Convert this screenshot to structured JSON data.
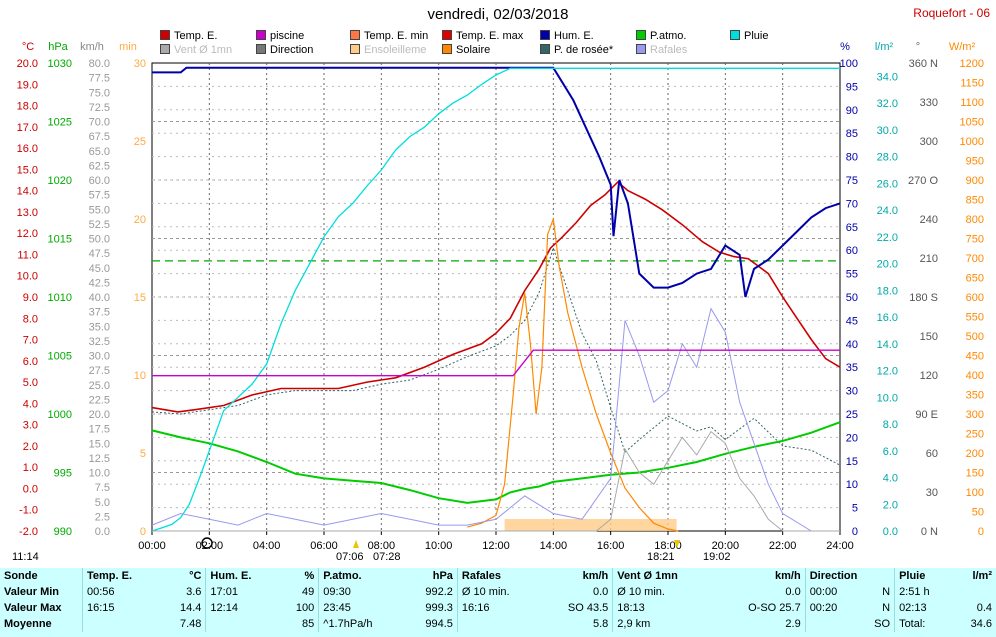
{
  "header": {
    "title": "vendredi, 02/03/2018",
    "station": "Roquefort - 06"
  },
  "legend": [
    {
      "label": "Temp. E.",
      "color": "#cc0000",
      "faded": false
    },
    {
      "label": "Vent Ø 1mn",
      "color": "#aaaaaa",
      "faded": true
    },
    {
      "label": "piscine",
      "color": "#cc00cc",
      "faded": false
    },
    {
      "label": "Direction",
      "color": "#777777",
      "faded": false
    },
    {
      "label": "Temp. E. min",
      "color": "#ff7744",
      "faded": false
    },
    {
      "label": "Ensoleilleme",
      "color": "#ffcc88",
      "faded": true
    },
    {
      "label": "Temp. E. max",
      "color": "#dd0000",
      "faded": false
    },
    {
      "label": "Solaire",
      "color": "#ff8800",
      "faded": false
    },
    {
      "label": "Hum. E.",
      "color": "#0000aa",
      "faded": false
    },
    {
      "label": "P. de rosée*",
      "color": "#336666",
      "faded": false
    },
    {
      "label": "P.atmo.",
      "color": "#00cc00",
      "faded": false
    },
    {
      "label": "Rafales",
      "color": "#9999ee",
      "faded": true
    },
    {
      "label": "Pluie",
      "color": "#00dddd",
      "faded": false
    }
  ],
  "axis_units": {
    "temp": "°C",
    "pressure": "hPa",
    "wind": "km/h",
    "solar_left": "min",
    "humidity": "%",
    "rain": "l/m²",
    "direction": "°",
    "solar": "W/m²"
  },
  "sun": {
    "sunrise": "07:06",
    "sunset": "18:21",
    "moon_events": [
      "07:28",
      "19:02"
    ],
    "time_marker": "11:14"
  },
  "chart_data": {
    "type": "line",
    "x_range": [
      "00:00",
      "24:00"
    ],
    "x_ticks": [
      "00:00",
      "02:00",
      "04:00",
      "06:00",
      "08:00",
      "10:00",
      "12:00",
      "14:00",
      "16:00",
      "18:00",
      "20:00",
      "22:00",
      "24:00"
    ],
    "temp_axis": {
      "range": [
        -2.0,
        20.0
      ],
      "ticks": [
        "-2.0",
        "-1.0",
        "0.0",
        "1.0",
        "2.0",
        "3.0",
        "4.0",
        "5.0",
        "6.0",
        "7.0",
        "8.0",
        "9.0",
        "10.0",
        "11.0",
        "12.0",
        "13.0",
        "14.0",
        "15.0",
        "16.0",
        "17.0",
        "18.0",
        "19.0",
        "20.0"
      ]
    },
    "pressure_axis": {
      "range": [
        990,
        1030
      ],
      "ticks": [
        "990",
        "995",
        "1000",
        "1005",
        "1010",
        "1015",
        "1020",
        "1025",
        "1030"
      ]
    },
    "wind_axis": {
      "range": [
        0.0,
        80.0
      ],
      "ticks": [
        "0.0",
        "2.5",
        "5.0",
        "7.5",
        "10.0",
        "12.5",
        "15.0",
        "17.5",
        "20.0",
        "22.5",
        "25.0",
        "27.5",
        "30.0",
        "32.5",
        "35.0",
        "37.5",
        "40.0",
        "42.5",
        "45.0",
        "47.5",
        "50.0",
        "52.5",
        "55.0",
        "57.5",
        "60.0",
        "62.5",
        "65.0",
        "67.5",
        "70.0",
        "72.5",
        "75.0",
        "77.5",
        "80.0"
      ]
    },
    "sunshine_axis": {
      "range": [
        0,
        30
      ],
      "ticks": [
        "0",
        "5",
        "10",
        "15",
        "20",
        "25",
        "30"
      ]
    },
    "humidity_axis": {
      "range": [
        0,
        100
      ],
      "ticks": [
        "0",
        "5",
        "10",
        "15",
        "20",
        "25",
        "30",
        "35",
        "40",
        "45",
        "50",
        "55",
        "60",
        "65",
        "70",
        "75",
        "80",
        "85",
        "90",
        "95",
        "100"
      ]
    },
    "rain_axis": {
      "range": [
        0.0,
        35.0
      ],
      "ticks": [
        "0.0",
        "2.0",
        "4.0",
        "6.0",
        "8.0",
        "10.0",
        "12.0",
        "14.0",
        "16.0",
        "18.0",
        "20.0",
        "22.0",
        "24.0",
        "26.0",
        "28.0",
        "30.0",
        "32.0",
        "34.0"
      ]
    },
    "direction_axis": {
      "range": [
        0,
        360
      ],
      "ticks": [
        "0 N",
        "30",
        "60",
        "90 E",
        "120",
        "150",
        "180 S",
        "210",
        "240",
        "270 O",
        "300",
        "330",
        "360 N"
      ]
    },
    "solar_axis": {
      "range": [
        0,
        1200
      ],
      "ticks": [
        "0",
        "50",
        "100",
        "150",
        "200",
        "250",
        "300",
        "350",
        "400",
        "450",
        "500",
        "550",
        "600",
        "650",
        "700",
        "750",
        "800",
        "850",
        "900",
        "950",
        "1000",
        "1050",
        "1100",
        "1150",
        "1200"
      ]
    },
    "series": [
      {
        "name": "Temp. E.",
        "color": "#cc0000",
        "x": [
          0,
          0.9,
          1.5,
          2.5,
          3.5,
          4.5,
          5.5,
          6.5,
          7.5,
          8.5,
          9.5,
          10.5,
          11.5,
          12,
          12.5,
          13,
          13.5,
          13.9,
          14.3,
          14.8,
          15.3,
          15.8,
          16.25,
          16.6,
          17.2,
          17.8,
          18.5,
          19.2,
          19.8,
          20.3,
          20.8,
          21.5,
          22,
          22.5,
          23,
          23.5,
          24
        ],
        "y": [
          3.8,
          3.6,
          3.7,
          3.9,
          4.4,
          4.7,
          4.7,
          4.7,
          5.0,
          5.2,
          5.7,
          6.3,
          6.8,
          7.3,
          8.0,
          9.3,
          10.3,
          11.3,
          11.8,
          12.5,
          13.3,
          13.8,
          14.4,
          14.0,
          13.6,
          13.1,
          12.4,
          11.6,
          11.1,
          10.9,
          10.8,
          10.1,
          9.0,
          8.0,
          7.0,
          6.1,
          5.7
        ]
      },
      {
        "name": "P. de rosée*",
        "color": "#336666",
        "x": [
          0,
          1,
          2,
          3,
          4,
          5,
          6,
          7,
          8,
          9,
          10,
          11,
          12,
          12.5,
          13,
          13.5,
          14,
          14.5,
          15,
          15.5,
          16,
          16.5,
          17,
          18,
          19,
          19.5,
          20,
          21,
          22,
          23,
          24
        ],
        "y": [
          3.6,
          3.5,
          3.7,
          3.9,
          4.4,
          4.6,
          4.6,
          4.6,
          4.9,
          5.1,
          5.6,
          6.2,
          6.7,
          7.2,
          7.9,
          9.2,
          11.3,
          9.3,
          7.3,
          6.0,
          3.8,
          1.7,
          2.3,
          3.4,
          2.7,
          2.9,
          2.3,
          3.3,
          2.0,
          1.8,
          1.1
        ]
      },
      {
        "name": "Hum. E.",
        "color": "#0000aa",
        "x": [
          0,
          0.5,
          1,
          1.2,
          1.5,
          14,
          14.3,
          14.7,
          15,
          15.3,
          15.6,
          16,
          16.1,
          16.3,
          16.6,
          17,
          17.5,
          18,
          18.5,
          19,
          19.5,
          20,
          20.5,
          20.7,
          21,
          21.5,
          22,
          22.5,
          23,
          23.5,
          24
        ],
        "y": [
          98,
          98,
          98,
          99,
          99,
          99,
          96,
          92,
          88,
          84,
          80,
          74,
          63,
          75,
          70,
          55,
          52,
          52,
          53,
          55,
          56,
          61,
          59,
          50,
          56,
          58,
          61,
          64,
          67,
          69,
          70
        ]
      },
      {
        "name": "P.atmo.",
        "color": "#00cc00",
        "x": [
          0,
          1,
          2,
          3,
          4,
          5,
          6,
          7,
          8,
          9,
          10,
          11,
          12,
          12.5,
          13,
          13.5,
          14,
          15,
          16,
          17,
          18,
          19,
          20,
          21,
          22,
          23,
          24
        ],
        "y": [
          998.6,
          998.0,
          997.5,
          996.8,
          995.9,
          994.9,
          994.5,
          994.3,
          994.1,
          993.5,
          992.8,
          992.4,
          992.7,
          993.3,
          993.6,
          993.8,
          994.2,
          994.5,
          994.8,
          995.0,
          995.4,
          995.9,
          996.6,
          997.2,
          997.7,
          998.4,
          999.3
        ]
      },
      {
        "name": "Pluie",
        "color": "#00dddd",
        "x": [
          0,
          0.3,
          0.7,
          1,
          1.3,
          1.7,
          2,
          2.5,
          3,
          3.5,
          4,
          4.5,
          5,
          5.5,
          6,
          6.5,
          7,
          7.5,
          8,
          8.5,
          9,
          9.5,
          10,
          10.5,
          11,
          11.5,
          12,
          12.5,
          13,
          13.5,
          14,
          24
        ],
        "y": [
          0,
          0.2,
          0.5,
          1.0,
          2.0,
          4.2,
          6.0,
          9.0,
          10.0,
          11.0,
          12.5,
          15.5,
          18.0,
          20.0,
          22.0,
          23.5,
          24.5,
          25.8,
          27.0,
          28.5,
          29.5,
          30.2,
          31.2,
          32.0,
          32.6,
          33.4,
          34.1,
          34.6,
          34.6,
          34.6,
          34.6,
          34.6
        ]
      },
      {
        "name": "Solaire",
        "color": "#ff8800",
        "x": [
          11,
          11.5,
          12,
          12.3,
          12.6,
          12.8,
          13,
          13.2,
          13.4,
          13.6,
          13.8,
          14,
          14.2,
          14.5,
          15,
          15.5,
          16,
          16.5,
          17,
          17.5,
          18,
          18.35
        ],
        "y": [
          10,
          20,
          40,
          120,
          350,
          520,
          610,
          480,
          300,
          420,
          760,
          800,
          680,
          560,
          420,
          300,
          200,
          110,
          60,
          20,
          5,
          0
        ]
      },
      {
        "name": "Rafales",
        "color": "#9999ee",
        "x": [
          0,
          1,
          2,
          3,
          4,
          5,
          6,
          7,
          8,
          9,
          10,
          11,
          12,
          13,
          14,
          15,
          16,
          16.5,
          17,
          17.5,
          18,
          18.5,
          19,
          19.5,
          20,
          20.5,
          21,
          21.5,
          22,
          23,
          24
        ],
        "y": [
          1,
          3,
          2,
          1,
          3,
          2,
          1,
          2,
          3,
          2,
          1,
          1,
          2,
          6,
          3,
          2,
          9,
          36,
          30,
          22,
          24,
          32,
          28,
          38,
          34,
          22,
          15,
          8,
          3,
          0,
          0
        ]
      },
      {
        "name": "Vent Ø 1mn",
        "color": "#aaaaaa",
        "x": [
          0,
          2,
          4,
          6,
          8,
          10,
          12,
          14,
          15.5,
          16,
          16.5,
          17,
          17.5,
          18,
          18.5,
          19,
          19.5,
          20,
          20.5,
          21,
          21.5,
          22,
          24
        ],
        "y": [
          0,
          0,
          0,
          0,
          0,
          0,
          0,
          0,
          0,
          2,
          14,
          10,
          8,
          12,
          16,
          13,
          17,
          15,
          9,
          6,
          2,
          0,
          0
        ]
      },
      {
        "name": "piscine",
        "color": "#cc00cc",
        "x": [
          0,
          12.6,
          13.3,
          13.5,
          14,
          24
        ],
        "y": [
          5.3,
          5.3,
          6.5,
          6.5,
          6.5,
          6.5
        ]
      }
    ],
    "reference_lines": [
      {
        "axis": "rain",
        "value": 20.2,
        "color": "#00aa00",
        "style": "dashed"
      }
    ]
  },
  "stats": {
    "headers": [
      "Sonde",
      "Temp. E.",
      "°C",
      "Hum. E.",
      "%",
      "P.atmo.",
      "hPa",
      "Rafales",
      "km/h",
      "Vent Ø 1mn",
      "km/h",
      "Direction",
      "Pluie",
      "l/m²"
    ],
    "rows": [
      {
        "label": "Valeur Min",
        "cells": [
          "00:56",
          "3.6",
          "17:01",
          "49",
          "09:30",
          "992.2",
          "Ø 10 min.",
          "0.0",
          "Ø 10 min.",
          "0.0",
          "00:00",
          "N",
          "2:51 h",
          ""
        ]
      },
      {
        "label": "Valeur Max",
        "cells": [
          "16:15",
          "14.4",
          "12:14",
          "100",
          "23:45",
          "999.3",
          "16:16",
          "SO 43.5",
          "18:13",
          "O-SO 25.7",
          "00:20",
          "N",
          "02:13",
          "0.4"
        ]
      },
      {
        "label": "Moyenne",
        "cells": [
          "",
          "7.48",
          "",
          "85",
          "^1.7hPa/h",
          "994.5",
          "",
          "5.8",
          "2,9 km",
          "2.9",
          "",
          "SO",
          "Total:",
          "34.6"
        ]
      }
    ]
  }
}
